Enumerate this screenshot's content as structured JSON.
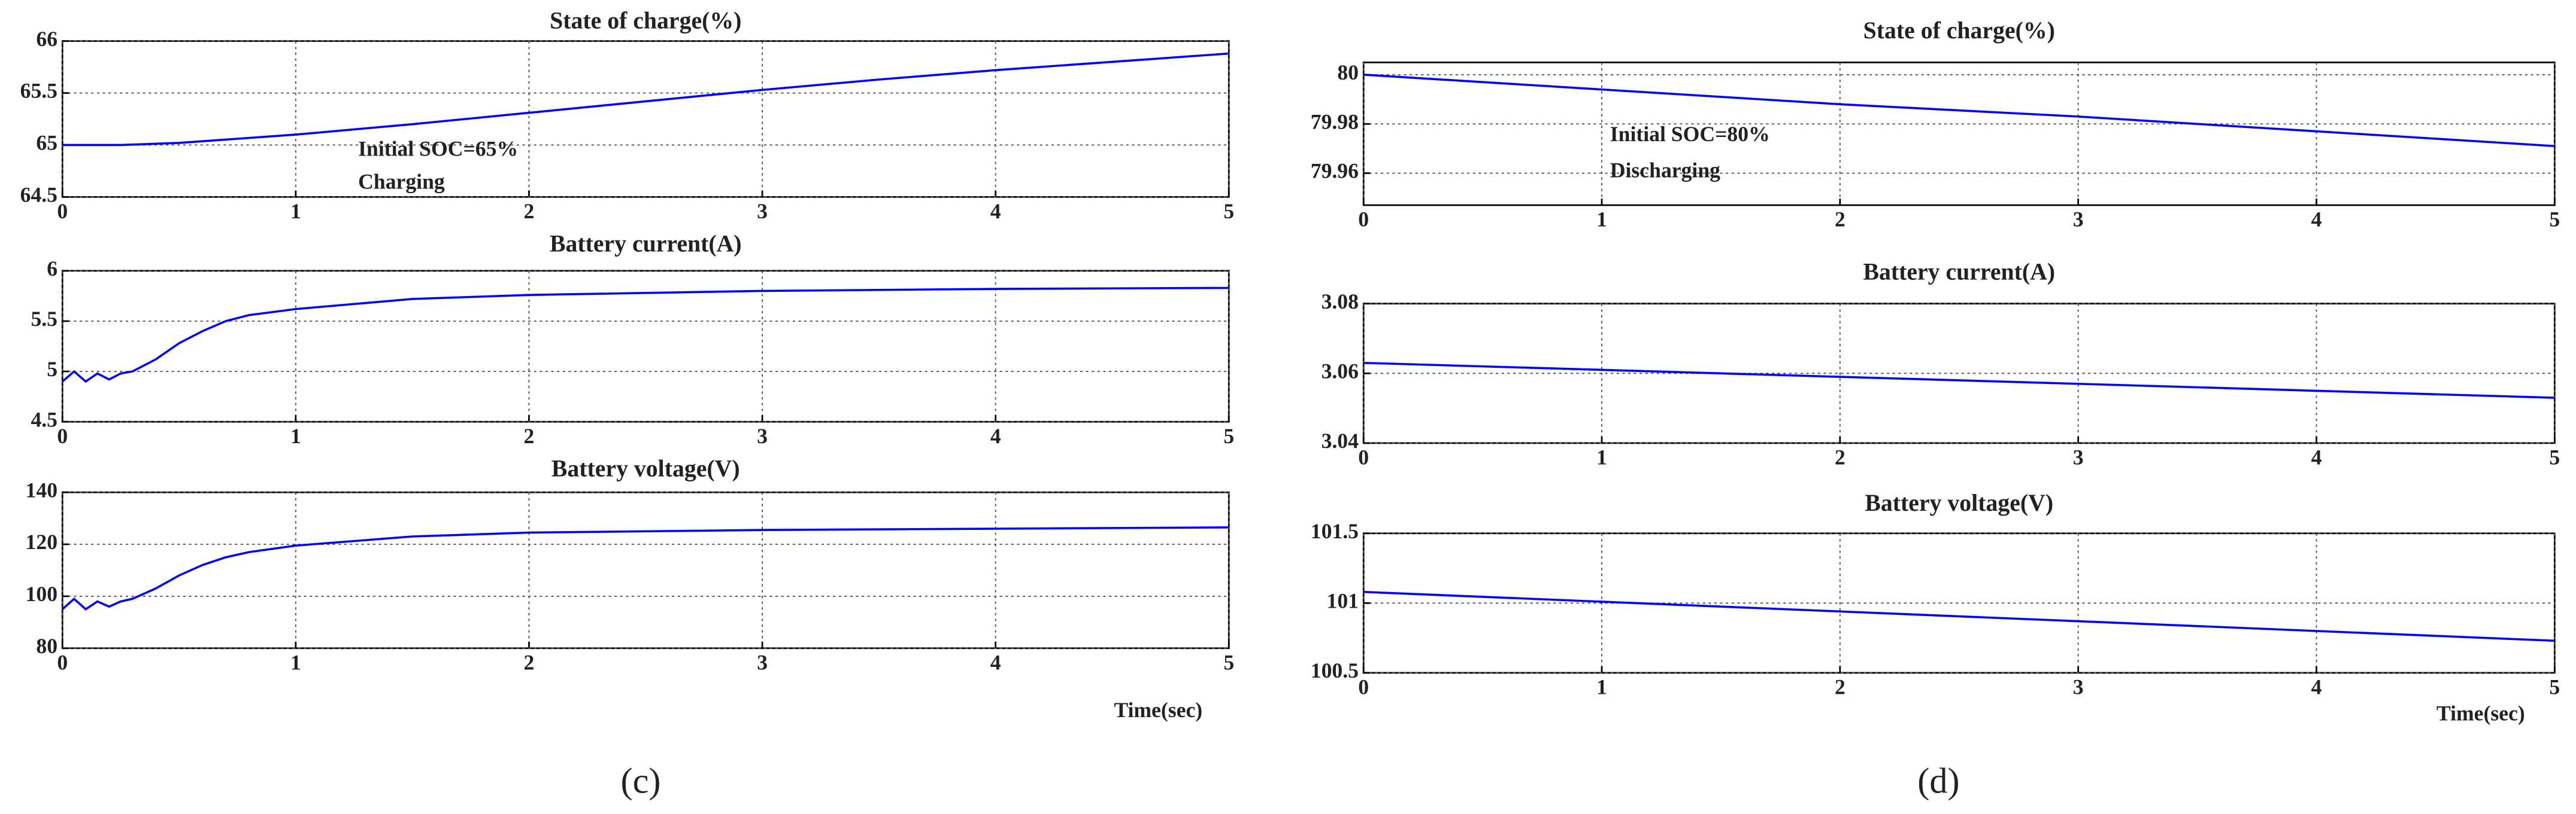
{
  "chart_data": [
    {
      "type": "line",
      "title": "State of charge(%)",
      "x": [
        0,
        0.25,
        0.5,
        0.75,
        1,
        1.5,
        2,
        2.5,
        3,
        3.5,
        4,
        4.5,
        5
      ],
      "series": [
        {
          "color": "#0000ff",
          "values": [
            65,
            65,
            65.02,
            65.06,
            65.1,
            65.2,
            65.31,
            65.42,
            65.53,
            65.63,
            65.72,
            65.8,
            65.88
          ]
        }
      ],
      "xlim": [
        0,
        5
      ],
      "ylim": [
        64.5,
        66
      ],
      "xticks": [
        0,
        1,
        2,
        3,
        4,
        5
      ],
      "yticks": [
        64.5,
        65,
        65.5,
        66
      ],
      "grid": true,
      "annotations": [
        "Initial SOC=65%",
        "Charging"
      ]
    },
    {
      "type": "line",
      "title": "Battery current(A)",
      "x": [
        0,
        0.05,
        0.1,
        0.15,
        0.2,
        0.25,
        0.3,
        0.4,
        0.5,
        0.6,
        0.7,
        0.8,
        1,
        1.5,
        2,
        3,
        4,
        5
      ],
      "series": [
        {
          "color": "#0000ff",
          "values": [
            4.9,
            5.0,
            4.9,
            4.98,
            4.92,
            4.98,
            5.0,
            5.12,
            5.28,
            5.4,
            5.5,
            5.56,
            5.62,
            5.72,
            5.76,
            5.8,
            5.82,
            5.83
          ]
        }
      ],
      "xlim": [
        0,
        5
      ],
      "ylim": [
        4.5,
        6
      ],
      "xticks": [
        0,
        1,
        2,
        3,
        4,
        5
      ],
      "yticks": [
        4.5,
        5,
        5.5,
        6
      ],
      "grid": true
    },
    {
      "type": "line",
      "title": "Battery voltage(V)",
      "x": [
        0,
        0.05,
        0.1,
        0.15,
        0.2,
        0.25,
        0.3,
        0.4,
        0.5,
        0.6,
        0.7,
        0.8,
        1,
        1.5,
        2,
        3,
        4,
        5
      ],
      "series": [
        {
          "color": "#0000ff",
          "values": [
            95,
            99,
            95,
            98,
            96,
            98,
            99,
            103,
            108,
            112,
            115,
            117,
            119.5,
            123,
            124.5,
            125.5,
            126,
            126.5
          ]
        }
      ],
      "xlim": [
        0,
        5
      ],
      "ylim": [
        80,
        140
      ],
      "xticks": [
        0,
        1,
        2,
        3,
        4,
        5
      ],
      "yticks": [
        80,
        100,
        120,
        140
      ],
      "grid": true,
      "xlabel": "Time(sec)"
    },
    {
      "type": "line",
      "title": "State of charge(%)",
      "x": [
        0,
        1,
        2,
        3,
        4,
        5
      ],
      "series": [
        {
          "color": "#0000ff",
          "values": [
            80,
            79.994,
            79.988,
            79.983,
            79.977,
            79.971
          ]
        }
      ],
      "xlim": [
        0,
        5
      ],
      "ylim": [
        79.947,
        80.005
      ],
      "xticks": [
        0,
        1,
        2,
        3,
        4,
        5
      ],
      "yticks": [
        79.96,
        79.98,
        80
      ],
      "grid": true,
      "annotations": [
        "Initial SOC=80%",
        "Discharging"
      ]
    },
    {
      "type": "line",
      "title": "Battery current(A)",
      "x": [
        0,
        1,
        2,
        3,
        4,
        5
      ],
      "series": [
        {
          "color": "#0000ff",
          "values": [
            3.063,
            3.061,
            3.059,
            3.057,
            3.055,
            3.053
          ]
        }
      ],
      "xlim": [
        0,
        5
      ],
      "ylim": [
        3.04,
        3.08
      ],
      "xticks": [
        0,
        1,
        2,
        3,
        4,
        5
      ],
      "yticks": [
        3.04,
        3.06,
        3.08
      ],
      "grid": true
    },
    {
      "type": "line",
      "title": "Battery voltage(V)",
      "x": [
        0,
        1,
        2,
        3,
        4,
        5
      ],
      "series": [
        {
          "color": "#0000ff",
          "values": [
            101.08,
            101.01,
            100.94,
            100.87,
            100.8,
            100.73
          ]
        }
      ],
      "xlim": [
        0,
        5
      ],
      "ylim": [
        100.5,
        101.5
      ],
      "xticks": [
        0,
        1,
        2,
        3,
        4,
        5
      ],
      "yticks": [
        100.5,
        101,
        101.5
      ],
      "grid": true,
      "xlabel": "Time(sec)"
    }
  ],
  "panel_labels": [
    "(c)",
    "(d)"
  ]
}
